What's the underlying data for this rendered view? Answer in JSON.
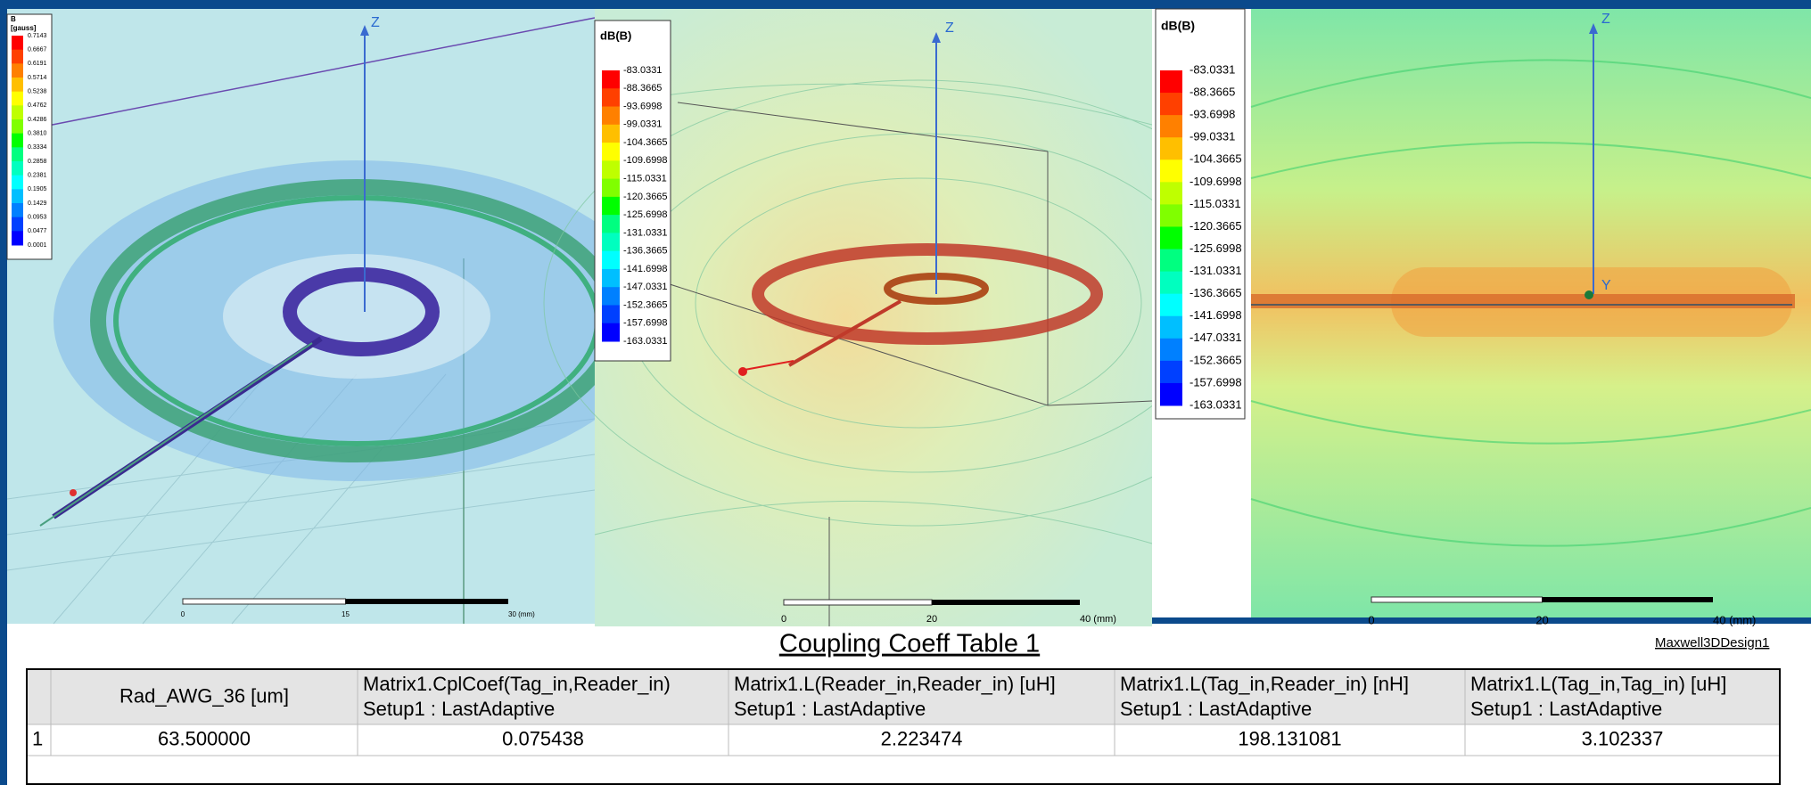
{
  "panels": [
    {
      "legend": {
        "title": "B",
        "unit": "[gauss]",
        "labels": [
          "0.7143",
          "0.6667",
          "0.6191",
          "0.5714",
          "0.5238",
          "0.4762",
          "0.4286",
          "0.3810",
          "0.3334",
          "0.2858",
          "0.2381",
          "0.1905",
          "0.1429",
          "0.0953",
          "0.0477",
          "0.0001"
        ]
      },
      "axes": [
        "Z"
      ],
      "scale": [
        "0",
        "15",
        "30 (mm)"
      ]
    },
    {
      "legend": {
        "title": "dB(B)",
        "labels": [
          "-83.0331",
          "-88.3665",
          "-93.6998",
          "-99.0331",
          "-104.3665",
          "-109.6998",
          "-115.0331",
          "-120.3665",
          "-125.6998",
          "-131.0331",
          "-136.3665",
          "-141.6998",
          "-147.0331",
          "-152.3665",
          "-157.6998",
          "-163.0331"
        ]
      },
      "axes": [
        "Z"
      ],
      "scale": [
        "0",
        "20",
        "40 (mm)"
      ]
    },
    {
      "legend": {
        "title": "dB(B)",
        "labels": [
          "-83.0331",
          "-88.3665",
          "-93.6998",
          "-99.0331",
          "-104.3665",
          "-109.6998",
          "-115.0331",
          "-120.3665",
          "-125.6998",
          "-131.0331",
          "-136.3665",
          "-141.6998",
          "-147.0331",
          "-152.3665",
          "-157.6998",
          "-163.0331"
        ]
      },
      "axes": [
        "Z",
        "Y"
      ],
      "scale": [
        "0",
        "20",
        "40 (mm)"
      ]
    }
  ],
  "table": {
    "title": "Coupling Coeff Table 1",
    "design": "Maxwell3DDesign1",
    "headers": [
      [
        "Rad_AWG_36 [um]"
      ],
      [
        "Matrix1.CplCoef(Tag_in,Reader_in)",
        "Setup1 : LastAdaptive"
      ],
      [
        "Matrix1.L(Reader_in,Reader_in) [uH]",
        "Setup1 : LastAdaptive"
      ],
      [
        "Matrix1.L(Tag_in,Reader_in) [nH]",
        "Setup1 : LastAdaptive"
      ],
      [
        "Matrix1.L(Tag_in,Tag_in) [uH]",
        "Setup1 : LastAdaptive"
      ]
    ],
    "rows": [
      [
        "1",
        "63.500000",
        "0.075438",
        "2.223474",
        "198.131081",
        "3.102337"
      ]
    ]
  }
}
